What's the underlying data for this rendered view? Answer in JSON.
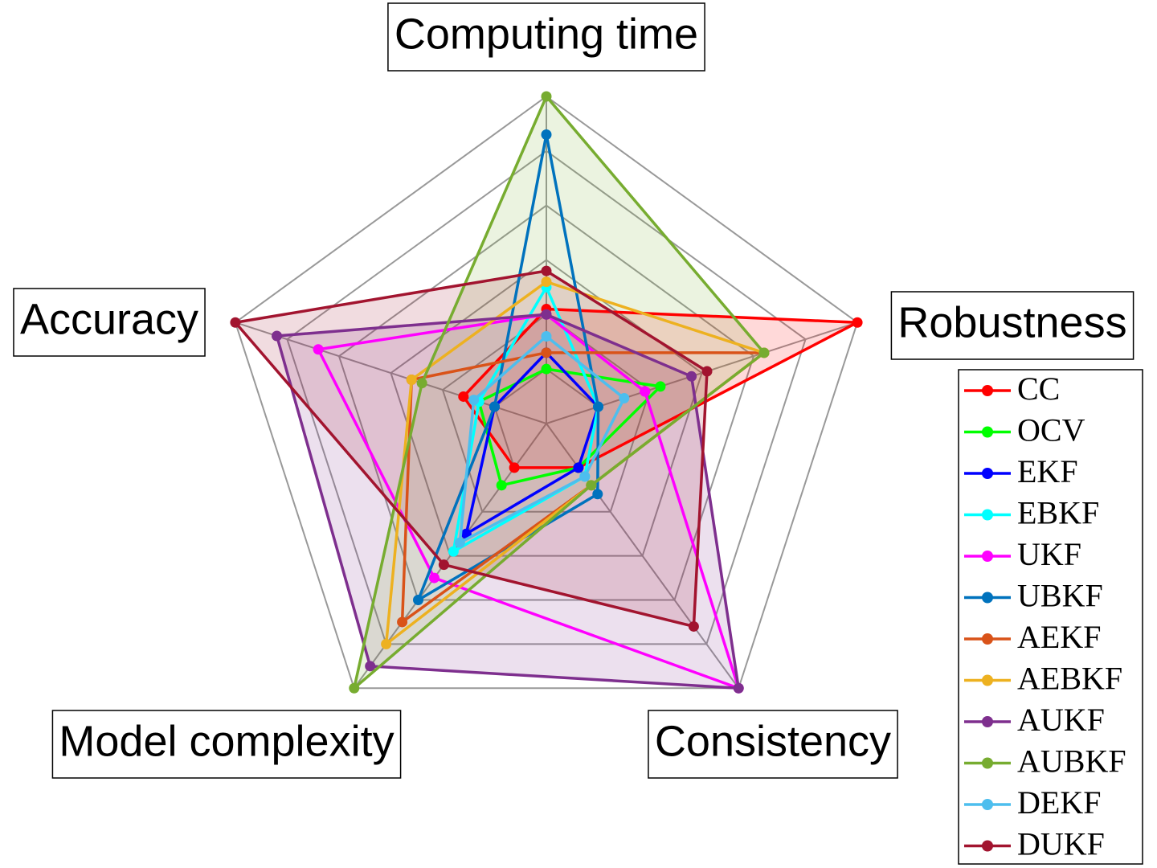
{
  "chart_data": {
    "type": "radar",
    "axes": [
      "Computing time",
      "Robustness",
      "Consistency",
      "Model complexity",
      "Accuracy"
    ],
    "rlim": [
      0,
      6
    ],
    "rticks": [
      1,
      2,
      3,
      4,
      5,
      6
    ],
    "grid": true,
    "series": [
      {
        "name": "CC",
        "color": "#ff0000",
        "filled": true,
        "values": [
          2.1,
          6,
          1,
          1,
          1.6
        ]
      },
      {
        "name": "OCV",
        "color": "#00ff00",
        "filled": false,
        "values": [
          1,
          2.2,
          1,
          1.4,
          1.3
        ]
      },
      {
        "name": "EKF",
        "color": "#0000ff",
        "filled": false,
        "values": [
          1.3,
          1,
          1,
          2.5,
          1
        ]
      },
      {
        "name": "EBKF",
        "color": "#00ffff",
        "filled": false,
        "values": [
          2.5,
          1,
          1.2,
          2.9,
          1.3
        ]
      },
      {
        "name": "UKF",
        "color": "#ff00ff",
        "filled": false,
        "values": [
          2,
          1.9,
          6,
          3.5,
          4.4
        ]
      },
      {
        "name": "UBKF",
        "color": "#0072bd",
        "filled": false,
        "values": [
          5.3,
          1,
          1.6,
          4,
          1
        ]
      },
      {
        "name": "AEKF",
        "color": "#d95319",
        "filled": false,
        "values": [
          1.3,
          4.2,
          1.4,
          4.5,
          2.6
        ]
      },
      {
        "name": "AEBKF",
        "color": "#edb120",
        "filled": false,
        "values": [
          2.6,
          4.2,
          1.4,
          5,
          2.6
        ]
      },
      {
        "name": "AUKF",
        "color": "#7e2f8e",
        "filled": true,
        "values": [
          2,
          2.8,
          6,
          5.5,
          5.2
        ]
      },
      {
        "name": "AUBKF",
        "color": "#77ac30",
        "filled": true,
        "values": [
          6,
          4.2,
          1.4,
          6,
          2.4
        ]
      },
      {
        "name": "DEKF",
        "color": "#4dbeee",
        "filled": false,
        "values": [
          1.6,
          1.5,
          1.2,
          2.7,
          1.4
        ]
      },
      {
        "name": "DUKF",
        "color": "#a2142f",
        "filled": true,
        "values": [
          2.8,
          3.1,
          4.6,
          3.2,
          6
        ]
      }
    ]
  }
}
